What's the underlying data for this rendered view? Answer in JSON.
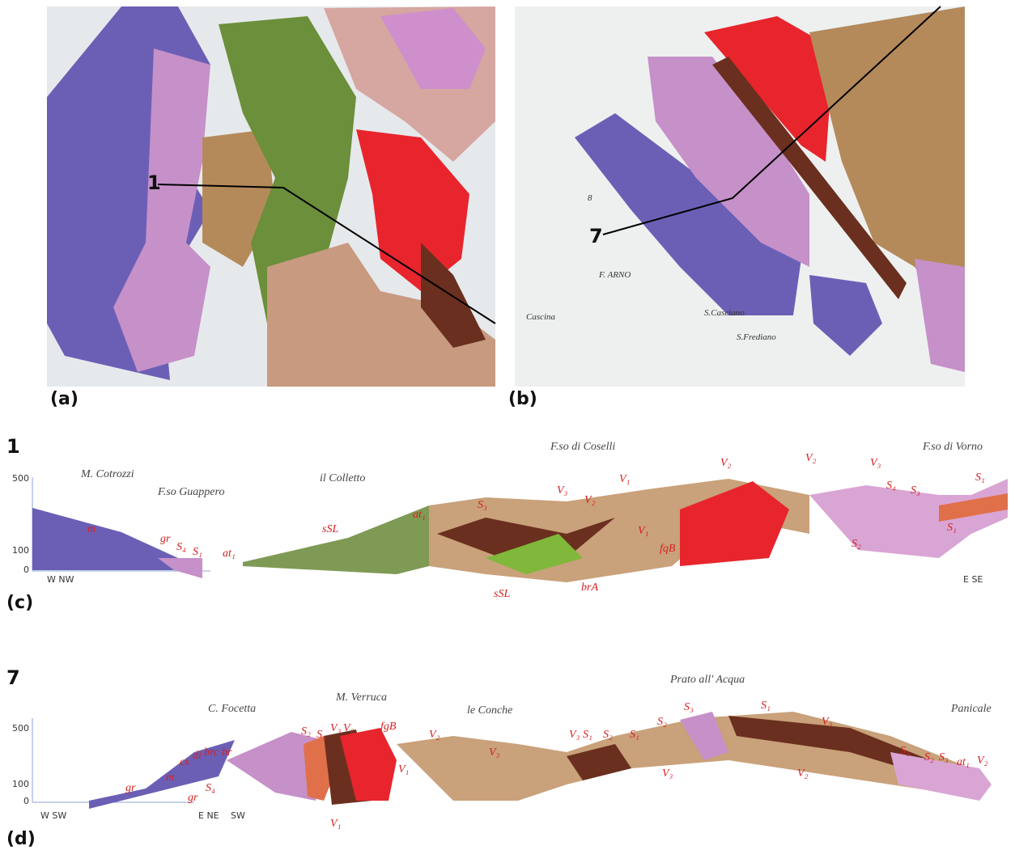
{
  "map_a": {
    "label": "(a)",
    "section_marker": "1"
  },
  "map_b": {
    "label": "(b)",
    "section_marker": "7",
    "river": "F. ARNO",
    "places": [
      "S.Casciano",
      "S.Frediano",
      "Cascina",
      "8"
    ]
  },
  "section_c": {
    "label": "(c)",
    "number": "1",
    "elevations": [
      "500",
      "100",
      "0"
    ],
    "places": [
      "M. Cotrozzi",
      "F.so Guappero",
      "il Colletto",
      "F.so di Coselli",
      "F.so di Vorno"
    ],
    "ends": [
      "W NW",
      "E SE"
    ],
    "units": [
      "m",
      "gr",
      "S₄",
      "S₁",
      "at₁",
      "sSL",
      "at₁",
      "S₃",
      "V₃",
      "V₂",
      "V₁",
      "V₂",
      "V₂",
      "V₃",
      "S₄",
      "S₃",
      "S₁",
      "S₁",
      "S₂",
      "fqB",
      "brA",
      "sSL",
      "V₁"
    ]
  },
  "section_d": {
    "label": "(d)",
    "number": "7",
    "elevations": [
      "500",
      "100",
      "0"
    ],
    "places": [
      "C. Focetta",
      "M. Verruca",
      "le Conche",
      "Prato all' Acqua",
      "Panicale"
    ],
    "ends": [
      "W SW",
      "E NE",
      "SW"
    ],
    "units": [
      "gr",
      "m",
      "cs",
      "di",
      "brc",
      "br",
      "S₄",
      "gr",
      "S₂",
      "S₁",
      "V₃",
      "V₂",
      "fgB",
      "V₁",
      "V₁",
      "V₂",
      "V₃",
      "V₃",
      "S₁",
      "S₂",
      "S₁",
      "S₂",
      "S₃",
      "S₁",
      "V₃",
      "V₃",
      "V₂",
      "S₁",
      "S₂",
      "S₃",
      "at₁",
      "V₂"
    ]
  }
}
